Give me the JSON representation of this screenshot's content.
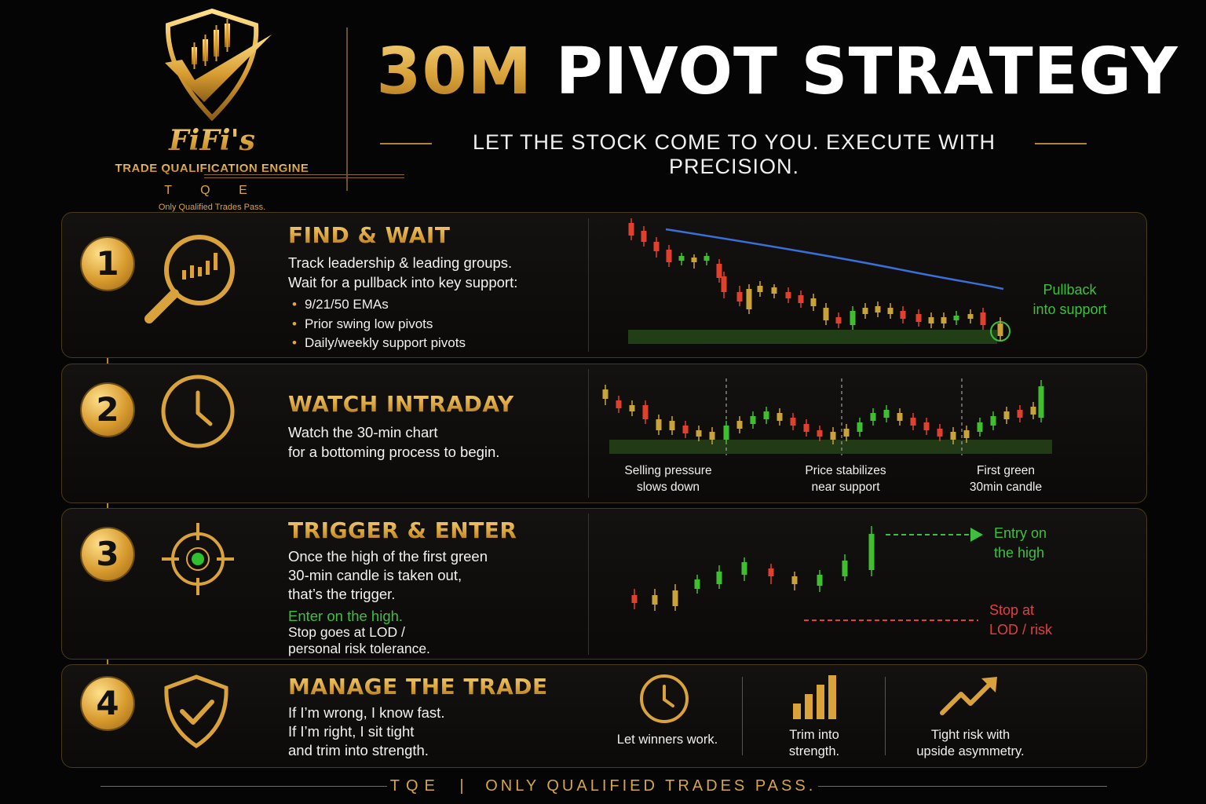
{
  "header": {
    "logo": {
      "name": "FiFi's",
      "engine": "TRADE QUALIFICATION ENGINE",
      "abbr": "T Q E",
      "tagline": "Only Qualified Trades Pass."
    },
    "title_highlight": "30M",
    "title_rest": "PIVOT STRATEGY",
    "subtitle": "LET THE STOCK COME TO YOU. EXECUTE WITH PRECISION."
  },
  "steps": [
    {
      "number": "1",
      "title": "FIND & WAIT",
      "text": [
        "Track leadership & leading groups.",
        "Wait for a pullback into key support:"
      ],
      "bullets": [
        "9/21/50 EMAs",
        "Prior swing low pivots",
        "Daily/weekly support pivots"
      ],
      "chart_label": [
        "Pullback",
        "into support"
      ]
    },
    {
      "number": "2",
      "title": "WATCH INTRADAY",
      "text": [
        "Watch the 30-min chart",
        "for a bottoming process to begin."
      ],
      "chart_labels": [
        [
          "Selling pressure",
          "slows down"
        ],
        [
          "Price stabilizes",
          "near support"
        ],
        [
          "First green",
          "30min candle"
        ]
      ]
    },
    {
      "number": "3",
      "title": "TRIGGER & ENTER",
      "text": [
        "Once the high of the first green",
        "30-min candle is taken out,",
        "that’s the trigger."
      ],
      "enter_text": "Enter on the high.",
      "stop_text": [
        "Stop goes at LOD /",
        "personal risk tolerance."
      ],
      "entry_label": [
        "Entry on",
        "the high"
      ],
      "stop_label": [
        "Stop at",
        "LOD / risk"
      ]
    },
    {
      "number": "4",
      "title": "MANAGE THE TRADE",
      "text": [
        "If I’m wrong, I know fast.",
        "If I’m right, I sit tight",
        "and trim into strength."
      ],
      "items": [
        {
          "icon": "clock-icon",
          "label": [
            "Let winners work."
          ]
        },
        {
          "icon": "bar-chart-icon",
          "label": [
            "Trim into",
            "strength."
          ]
        },
        {
          "icon": "trend-up-arrow-icon",
          "label": [
            "Tight risk with",
            "upside asymmetry."
          ]
        }
      ]
    }
  ],
  "footer": {
    "abbr": "TQE",
    "separator": "|",
    "tagline": "ONLY QUALIFIED TRADES PASS."
  },
  "colors": {
    "gold": "#d9a63a",
    "green": "#3fbf3f",
    "red": "#e04040",
    "ema_blue": "#3a6fd8",
    "background": "#050505"
  }
}
